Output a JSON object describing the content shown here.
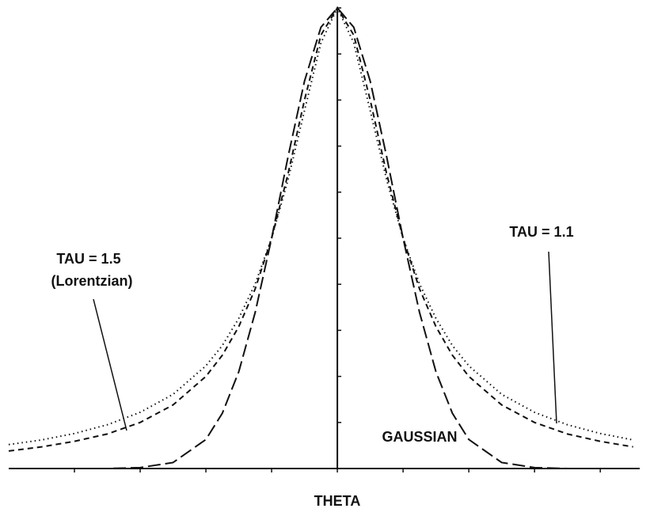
{
  "chart_data": {
    "type": "line",
    "xlabel": "THETA",
    "x": [
      -5,
      -4.5,
      -4,
      -3.5,
      -3,
      -2.5,
      -2,
      -1.75,
      -1.5,
      -1.25,
      -1,
      -0.75,
      -0.5,
      -0.25,
      0,
      0.25,
      0.5,
      0.75,
      1,
      1.25,
      1.5,
      1.75,
      2,
      2.5,
      3,
      3.5,
      4,
      4.5
    ],
    "series": [
      {
        "name": "GAUSSIAN",
        "color": "#111111",
        "style": "long-dash",
        "values": [
          0,
          0,
          0,
          0,
          0.02,
          0.13,
          0.63,
          1.2,
          2.1,
          3.39,
          5,
          6.77,
          8.41,
          9.58,
          10,
          9.58,
          8.41,
          6.77,
          5,
          3.39,
          2.1,
          1.2,
          0.63,
          0.13,
          0.02,
          0,
          0,
          0
        ]
      },
      {
        "name": "TAU = 1.5",
        "annotation": "(Lorentzian)",
        "color": "#111111",
        "style": "dashed",
        "values": [
          0.38,
          0.47,
          0.59,
          0.75,
          1.0,
          1.38,
          2.0,
          2.46,
          3.08,
          3.9,
          5.0,
          6.4,
          8.0,
          9.41,
          10,
          9.41,
          8.0,
          6.4,
          5.0,
          3.9,
          3.08,
          2.46,
          2.0,
          1.38,
          1.0,
          0.75,
          0.59,
          0.47
        ]
      },
      {
        "name": "TAU = 1.1",
        "color": "#111111",
        "style": "dotted",
        "values": [
          0.52,
          0.62,
          0.76,
          0.95,
          1.22,
          1.61,
          2.23,
          2.67,
          3.26,
          4.01,
          5,
          6.27,
          7.77,
          9.24,
          10,
          9.24,
          7.77,
          6.27,
          5,
          4.01,
          3.26,
          2.67,
          2.23,
          1.61,
          1.22,
          0.95,
          0.76,
          0.62
        ]
      }
    ],
    "xlim": [
      -5,
      4.6
    ],
    "ylim": [
      0,
      10
    ],
    "xticks": [
      -4,
      -3,
      -2,
      -1,
      0,
      1,
      2,
      3,
      4
    ],
    "yticks": [
      0,
      1,
      2,
      3,
      4,
      5,
      6,
      7,
      8,
      9,
      10
    ]
  }
}
